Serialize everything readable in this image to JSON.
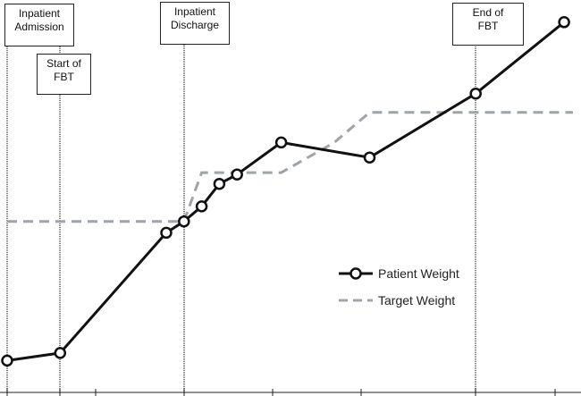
{
  "chart_data": {
    "type": "line",
    "title": "",
    "xlabel": "",
    "ylabel": "",
    "grid": false,
    "legend_position": "lower-right",
    "series": [
      {
        "name": "Patient Weight",
        "style": "solid-line-with-circle-markers",
        "color": "#111111",
        "points": [
          {
            "x": 0,
            "y": 8
          },
          {
            "x": 3,
            "y": 10
          },
          {
            "x": 9,
            "y": 42
          },
          {
            "x": 10,
            "y": 45
          },
          {
            "x": 11,
            "y": 49
          },
          {
            "x": 12,
            "y": 55
          },
          {
            "x": 13,
            "y": 57.5
          },
          {
            "x": 15.5,
            "y": 66
          },
          {
            "x": 20.5,
            "y": 62
          },
          {
            "x": 26.5,
            "y": 79
          },
          {
            "x": 31.5,
            "y": 98
          }
        ]
      },
      {
        "name": "Target Weight",
        "style": "dashed-line",
        "color": "#9ea4aa",
        "points": [
          {
            "x": 0,
            "y": 45
          },
          {
            "x": 10,
            "y": 45
          },
          {
            "x": 11,
            "y": 58
          },
          {
            "x": 15.5,
            "y": 58
          },
          {
            "x": 18.5,
            "y": 66
          },
          {
            "x": 20.5,
            "y": 74
          },
          {
            "x": 32,
            "y": 74
          }
        ]
      }
    ],
    "events": [
      {
        "label_lines": [
          "Inpatient",
          "Admission"
        ],
        "x": 0
      },
      {
        "label_lines": [
          "Start of",
          "FBT"
        ],
        "x": 3
      },
      {
        "label_lines": [
          "Inpatient",
          "Discharge"
        ],
        "x": 10
      },
      {
        "label_lines": [
          "End of",
          "FBT"
        ],
        "x": 26.5
      }
    ],
    "x_ticks": [
      0,
      3,
      5,
      10,
      15,
      20,
      26.5,
      31
    ],
    "xlim": [
      0,
      32
    ],
    "ylim": [
      0,
      102
    ]
  },
  "legend": {
    "patient_label": "Patient Weight",
    "target_label": "Target Weight"
  }
}
